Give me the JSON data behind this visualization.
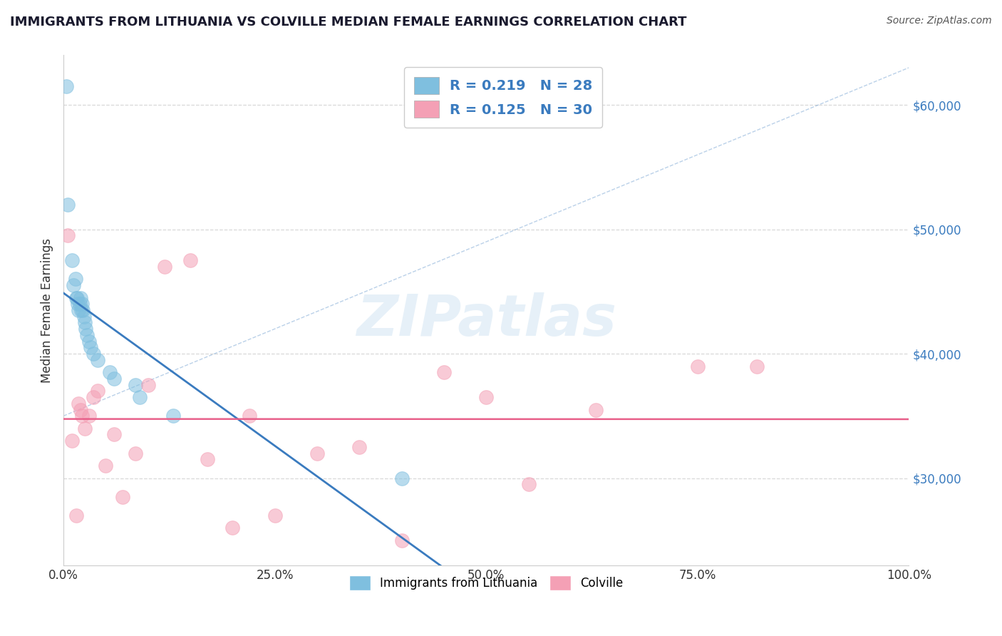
{
  "title": "IMMIGRANTS FROM LITHUANIA VS COLVILLE MEDIAN FEMALE EARNINGS CORRELATION CHART",
  "source": "Source: ZipAtlas.com",
  "ylabel": "Median Female Earnings",
  "xlim": [
    0,
    100
  ],
  "ylim": [
    23000,
    64000
  ],
  "blue_color": "#7fbfdf",
  "pink_color": "#f4a0b5",
  "blue_line_color": "#3a7bbf",
  "pink_line_color": "#e8608a",
  "blue_R": 0.219,
  "blue_N": 28,
  "pink_R": 0.125,
  "pink_N": 30,
  "blue_x": [
    0.3,
    0.5,
    1.0,
    1.2,
    1.4,
    1.5,
    1.6,
    1.7,
    1.8,
    1.9,
    2.0,
    2.1,
    2.2,
    2.3,
    2.4,
    2.5,
    2.6,
    2.8,
    3.0,
    3.2,
    3.5,
    4.0,
    5.5,
    6.0,
    8.5,
    9.0,
    13.0,
    40.0
  ],
  "blue_y": [
    61500,
    52000,
    47500,
    45500,
    46000,
    44500,
    44500,
    44000,
    43500,
    44000,
    44500,
    43500,
    44000,
    43500,
    43000,
    42500,
    42000,
    41500,
    41000,
    40500,
    40000,
    39500,
    38500,
    38000,
    37500,
    36500,
    35000,
    30000
  ],
  "pink_x": [
    0.5,
    1.0,
    1.5,
    1.8,
    2.0,
    2.2,
    2.5,
    3.0,
    3.5,
    4.0,
    5.0,
    6.0,
    7.0,
    8.5,
    10.0,
    12.0,
    15.0,
    17.0,
    20.0,
    22.0,
    25.0,
    30.0,
    35.0,
    40.0,
    45.0,
    50.0,
    55.0,
    63.0,
    75.0,
    82.0
  ],
  "pink_y": [
    49500,
    33000,
    27000,
    36000,
    35500,
    35000,
    34000,
    35000,
    36500,
    37000,
    31000,
    33500,
    28500,
    32000,
    37500,
    47000,
    47500,
    31500,
    26000,
    35000,
    27000,
    32000,
    32500,
    25000,
    38500,
    36500,
    29500,
    35500,
    39000,
    39000
  ],
  "watermark": "ZIPatlas",
  "background_color": "#ffffff",
  "grid_color": "#d8d8d8",
  "yticks": [
    30000,
    40000,
    50000,
    60000
  ],
  "xticks": [
    0,
    25,
    50,
    75,
    100
  ],
  "blue_legend_label": "Immigrants from Lithuania",
  "pink_legend_label": "Colville"
}
